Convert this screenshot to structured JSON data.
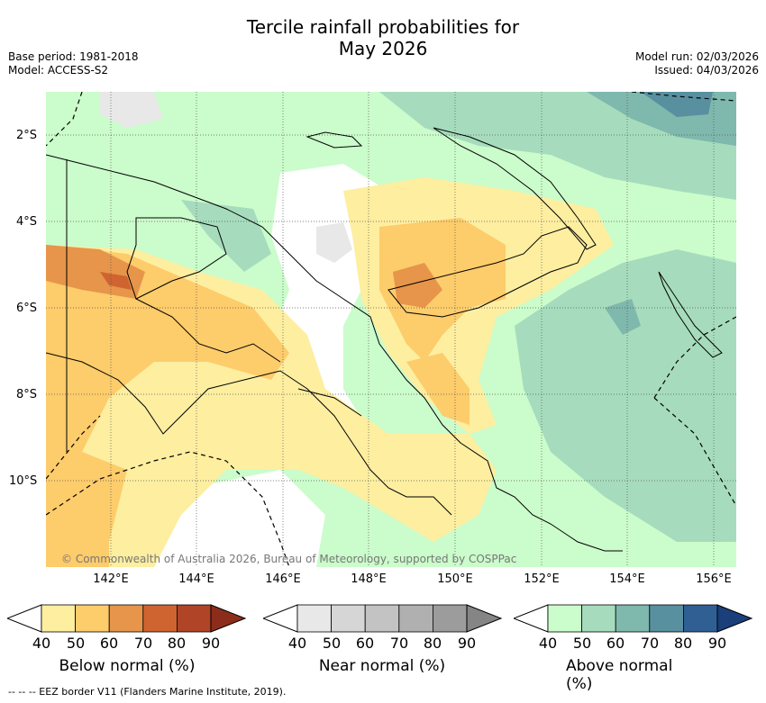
{
  "title_line1": "Tercile rainfall probabilities for",
  "title_line2": "May 2026",
  "base_period": "Base period: 1981-2018",
  "model": "Model: ACCESS-S2",
  "model_run": "Model run: 02/03/2026",
  "issued": "Issued: 04/03/2026",
  "lat_labels": [
    "2°S",
    "4°S",
    "6°S",
    "8°S",
    "10°S"
  ],
  "lon_labels": [
    "142°E",
    "144°E",
    "146°E",
    "148°E",
    "150°E",
    "152°E",
    "154°E",
    "156°E"
  ],
  "copyright": "© Commonwealth of Australia 2026, Bureau of Meteorology, supported by COSPPac",
  "colorbars": [
    {
      "title": "Below normal (%)",
      "ticks": [
        "40",
        "50",
        "60",
        "70",
        "80",
        "90"
      ],
      "colors": [
        "#fdeea0",
        "#fdcc6b",
        "#e6954a",
        "#cf6430",
        "#b04427",
        "#8c2d1b"
      ]
    },
    {
      "title": "Near normal (%)",
      "ticks": [
        "40",
        "50",
        "60",
        "70",
        "80",
        "90"
      ],
      "colors": [
        "#e8e8e8",
        "#d6d6d6",
        "#c3c3c3",
        "#b0b0b0",
        "#9c9c9c",
        "#858585"
      ]
    },
    {
      "title": "Above normal (%)",
      "ticks": [
        "40",
        "50",
        "60",
        "70",
        "80",
        "90"
      ],
      "colors": [
        "#cbfccb",
        "#a6dcbd",
        "#7fb8ad",
        "#5890a0",
        "#2f5f93",
        "#1a3f7a"
      ]
    }
  ],
  "footnote": "--  --  -- EEZ border V11 (Flanders Marine Institute, 2019)."
}
